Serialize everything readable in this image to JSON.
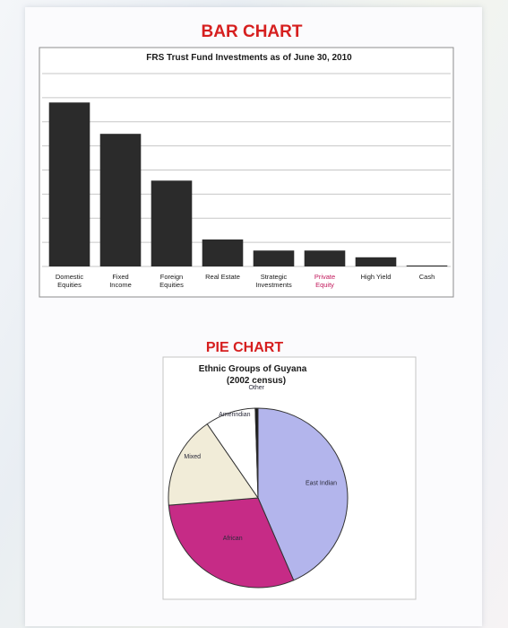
{
  "headings": {
    "bar": "BAR CHART",
    "pie": "PIE CHART"
  },
  "colors": {
    "bar": "#2b2b2b",
    "heading": "#d61f1f",
    "private_equity_label": "#c2185b",
    "east_indian": "#b3b5ec",
    "african": "#c62b86",
    "mixed": "#f1ecd8",
    "amerindian": "#ffffff",
    "other": "#1a1a1a"
  },
  "chart_data": [
    {
      "type": "bar",
      "title": "FRS Trust Fund Investments as of June 30, 2010",
      "categories": [
        [
          "Domestic",
          "Equities"
        ],
        [
          "Fixed",
          "Income"
        ],
        [
          "Foreign",
          "Equities"
        ],
        [
          "Real Estate"
        ],
        [
          "Strategic",
          "Investments"
        ],
        [
          "Private",
          "Equity"
        ],
        [
          "High Yield"
        ],
        [
          "Cash"
        ]
      ],
      "values": [
        34,
        27.5,
        17.8,
        5.6,
        3.3,
        3.3,
        1.9,
        0.2
      ],
      "ylim": [
        0,
        40
      ],
      "grid": true,
      "gridlines": 8
    },
    {
      "type": "pie",
      "title": [
        "Ethnic Groups of Guyana",
        "(2002 census)"
      ],
      "slices": [
        {
          "label": "East Indian",
          "value": 43.5
        },
        {
          "label": "African",
          "value": 30.2
        },
        {
          "label": "Mixed",
          "value": 16.7
        },
        {
          "label": "Amerindian",
          "value": 9.1
        },
        {
          "label": "Other",
          "value": 0.5
        }
      ]
    }
  ]
}
